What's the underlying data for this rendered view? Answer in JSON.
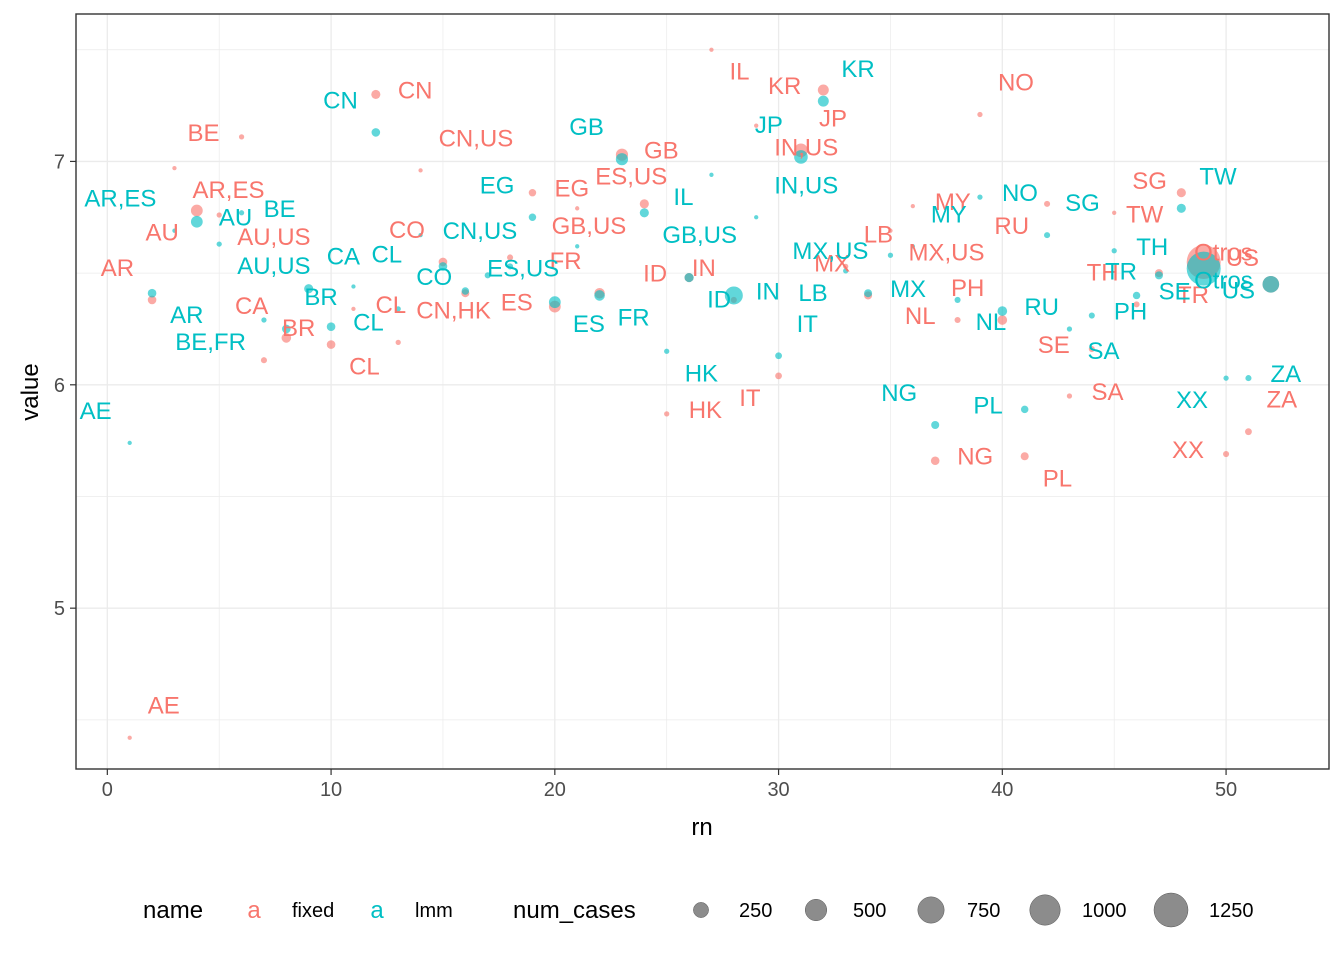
{
  "chart_data": {
    "type": "scatter",
    "xlabel": "rn",
    "ylabel": "value",
    "xlim": [
      -1.4,
      54.6
    ],
    "ylim": [
      4.28,
      7.66
    ],
    "x_ticks": [
      0,
      10,
      20,
      30,
      40,
      50
    ],
    "y_ticks": [
      5,
      6,
      7
    ],
    "grid": true,
    "legend_position": "bottom",
    "colors": {
      "fixed": "#F8766D",
      "lmm": "#00BFC4",
      "size_key": "#7f7f7f"
    },
    "legend": {
      "color_title": "name",
      "color_entries": [
        {
          "key": "a",
          "label": "fixed"
        },
        {
          "key": "a",
          "label": "lmm"
        }
      ],
      "size_title": "num_cases",
      "size_entries": [
        250,
        500,
        750,
        1000,
        1250
      ]
    },
    "series": [
      {
        "name": "fixed",
        "points": [
          {
            "x": 1,
            "y": 4.42,
            "size": 20,
            "label": "AE"
          },
          {
            "x": 2,
            "y": 6.38,
            "size": 80,
            "label": "AR"
          },
          {
            "x": 3,
            "y": 6.97,
            "size": 20,
            "label": "AR,ES"
          },
          {
            "x": 4,
            "y": 6.78,
            "size": 150,
            "label": "AU"
          },
          {
            "x": 5,
            "y": 6.76,
            "size": 30,
            "label": "AU,US"
          },
          {
            "x": 6,
            "y": 7.11,
            "size": 30,
            "label": "BE"
          },
          {
            "x": 7,
            "y": 6.11,
            "size": 40,
            "label": "BR"
          },
          {
            "x": 8,
            "y": 6.21,
            "size": 100,
            "label": "CA"
          },
          {
            "x": 10,
            "y": 6.18,
            "size": 80,
            "label": "CL"
          },
          {
            "x": 11,
            "y": 6.34,
            "size": 20,
            "label": "CL"
          },
          {
            "x": 12,
            "y": 7.3,
            "size": 90,
            "label": "CN"
          },
          {
            "x": 13,
            "y": 6.19,
            "size": 30,
            "label": "CN,HK"
          },
          {
            "x": 14,
            "y": 6.96,
            "size": 20,
            "label": "CN,US"
          },
          {
            "x": 15,
            "y": 6.55,
            "size": 80,
            "label": "CO"
          },
          {
            "x": 16,
            "y": 6.41,
            "size": 70,
            "label": ""
          },
          {
            "x": 18,
            "y": 6.57,
            "size": 40,
            "label": ""
          },
          {
            "x": 19,
            "y": 6.86,
            "size": 60,
            "label": "EG"
          },
          {
            "x": 20,
            "y": 6.35,
            "size": 150,
            "label": "ES"
          },
          {
            "x": 21,
            "y": 6.79,
            "size": 20,
            "label": "ES,US"
          },
          {
            "x": 22,
            "y": 6.41,
            "size": 120,
            "label": "FR"
          },
          {
            "x": 23,
            "y": 7.03,
            "size": 160,
            "label": "GB"
          },
          {
            "x": 24,
            "y": 6.81,
            "size": 90,
            "label": "GB,US"
          },
          {
            "x": 25,
            "y": 5.87,
            "size": 30,
            "label": "HK"
          },
          {
            "x": 26,
            "y": 6.48,
            "size": 90,
            "label": "ID"
          },
          {
            "x": 27,
            "y": 7.5,
            "size": 20,
            "label": "IL"
          },
          {
            "x": 28,
            "y": 6.38,
            "size": 40,
            "label": "IN"
          },
          {
            "x": 29,
            "y": 7.16,
            "size": 20,
            "label": "IN,US"
          },
          {
            "x": 30,
            "y": 6.04,
            "size": 50,
            "label": "IT"
          },
          {
            "x": 31,
            "y": 7.05,
            "size": 200,
            "label": "JP"
          },
          {
            "x": 32,
            "y": 7.32,
            "size": 130,
            "label": "KR"
          },
          {
            "x": 33,
            "y": 6.53,
            "size": 30,
            "label": "LB"
          },
          {
            "x": 34,
            "y": 6.4,
            "size": 70,
            "label": "MX"
          },
          {
            "x": 35,
            "y": 6.69,
            "size": 20,
            "label": "MX,US"
          },
          {
            "x": 36,
            "y": 6.8,
            "size": 20,
            "label": "MY"
          },
          {
            "x": 37,
            "y": 5.66,
            "size": 80,
            "label": "NG"
          },
          {
            "x": 38,
            "y": 6.29,
            "size": 40,
            "label": "NL"
          },
          {
            "x": 39,
            "y": 7.21,
            "size": 30,
            "label": "NO"
          },
          {
            "x": 40,
            "y": 6.29,
            "size": 100,
            "label": "PH"
          },
          {
            "x": 41,
            "y": 5.68,
            "size": 70,
            "label": "PL"
          },
          {
            "x": 42,
            "y": 6.81,
            "size": 40,
            "label": "RU"
          },
          {
            "x": 43,
            "y": 5.95,
            "size": 30,
            "label": "SA"
          },
          {
            "x": 44,
            "y": 6.16,
            "size": 40,
            "label": "SE"
          },
          {
            "x": 45,
            "y": 6.77,
            "size": 20,
            "label": "SG"
          },
          {
            "x": 46,
            "y": 6.36,
            "size": 40,
            "label": "TH"
          },
          {
            "x": 47,
            "y": 6.5,
            "size": 70,
            "label": "TR"
          },
          {
            "x": 48,
            "y": 6.86,
            "size": 90,
            "label": "TW"
          },
          {
            "x": 49,
            "y": 6.55,
            "size": 1250,
            "label": "US"
          },
          {
            "x": 50,
            "y": 5.69,
            "size": 40,
            "label": "XX"
          },
          {
            "x": 51,
            "y": 5.79,
            "size": 50,
            "label": "ZA"
          },
          {
            "x": 52,
            "y": 6.45,
            "size": 300,
            "label": "Otros"
          }
        ]
      },
      {
        "name": "lmm",
        "points": [
          {
            "x": 1,
            "y": 5.74,
            "size": 20,
            "label": "AE"
          },
          {
            "x": 2,
            "y": 6.41,
            "size": 80,
            "label": "AR"
          },
          {
            "x": 3,
            "y": 6.69,
            "size": 20,
            "label": "AR,ES"
          },
          {
            "x": 4,
            "y": 6.73,
            "size": 150,
            "label": "AU"
          },
          {
            "x": 5,
            "y": 6.63,
            "size": 30,
            "label": "AU,US"
          },
          {
            "x": 6,
            "y": 6.77,
            "size": 30,
            "label": "BE"
          },
          {
            "x": 7,
            "y": 6.29,
            "size": 30,
            "label": "BE,FR"
          },
          {
            "x": 8,
            "y": 6.25,
            "size": 80,
            "label": "BR"
          },
          {
            "x": 9,
            "y": 6.43,
            "size": 90,
            "label": "CA"
          },
          {
            "x": 10,
            "y": 6.26,
            "size": 80,
            "label": "CL"
          },
          {
            "x": 11,
            "y": 6.44,
            "size": 20,
            "label": "CL"
          },
          {
            "x": 12,
            "y": 7.13,
            "size": 80,
            "label": "CN"
          },
          {
            "x": 13,
            "y": 6.34,
            "size": 30,
            "label": "CO"
          },
          {
            "x": 14,
            "y": 6.67,
            "size": 20,
            "label": "CN,US"
          },
          {
            "x": 15,
            "y": 6.53,
            "size": 80,
            "label": ""
          },
          {
            "x": 16,
            "y": 6.42,
            "size": 60,
            "label": ""
          },
          {
            "x": 17,
            "y": 6.49,
            "size": 40,
            "label": ""
          },
          {
            "x": 18,
            "y": 6.53,
            "size": 40,
            "label": ""
          },
          {
            "x": 19,
            "y": 6.75,
            "size": 60,
            "label": "EG"
          },
          {
            "x": 20,
            "y": 6.37,
            "size": 150,
            "label": "ES"
          },
          {
            "x": 21,
            "y": 6.62,
            "size": 20,
            "label": "ES,US"
          },
          {
            "x": 22,
            "y": 6.4,
            "size": 120,
            "label": "FR"
          },
          {
            "x": 23,
            "y": 7.01,
            "size": 160,
            "label": "GB"
          },
          {
            "x": 24,
            "y": 6.77,
            "size": 90,
            "label": "GB,US"
          },
          {
            "x": 25,
            "y": 6.15,
            "size": 30,
            "label": "HK"
          },
          {
            "x": 26,
            "y": 6.48,
            "size": 90,
            "label": "ID"
          },
          {
            "x": 27,
            "y": 6.94,
            "size": 20,
            "label": "IL"
          },
          {
            "x": 28,
            "y": 6.4,
            "size": 350,
            "label": "IN"
          },
          {
            "x": 29,
            "y": 6.75,
            "size": 20,
            "label": "IN,US"
          },
          {
            "x": 30,
            "y": 6.13,
            "size": 50,
            "label": "IT"
          },
          {
            "x": 31,
            "y": 7.02,
            "size": 200,
            "label": "JP"
          },
          {
            "x": 32,
            "y": 7.27,
            "size": 130,
            "label": "KR"
          },
          {
            "x": 33,
            "y": 6.51,
            "size": 30,
            "label": "LB"
          },
          {
            "x": 34,
            "y": 6.41,
            "size": 70,
            "label": "MX"
          },
          {
            "x": 35,
            "y": 6.58,
            "size": 30,
            "label": "MX,US"
          },
          {
            "x": 36,
            "y": 6.62,
            "size": 20,
            "label": "MY"
          },
          {
            "x": 37,
            "y": 5.82,
            "size": 70,
            "label": "NG"
          },
          {
            "x": 38,
            "y": 6.38,
            "size": 40,
            "label": "NL"
          },
          {
            "x": 39,
            "y": 6.84,
            "size": 30,
            "label": "NO"
          },
          {
            "x": 40,
            "y": 6.33,
            "size": 100,
            "label": "RU"
          },
          {
            "x": 41,
            "y": 5.89,
            "size": 60,
            "label": "PL"
          },
          {
            "x": 42,
            "y": 6.67,
            "size": 40,
            "label": "SG"
          },
          {
            "x": 43,
            "y": 6.25,
            "size": 30,
            "label": "SA"
          },
          {
            "x": 44,
            "y": 6.31,
            "size": 40,
            "label": "PH"
          },
          {
            "x": 45,
            "y": 6.6,
            "size": 30,
            "label": "TH"
          },
          {
            "x": 46,
            "y": 6.4,
            "size": 60,
            "label": "SE"
          },
          {
            "x": 47,
            "y": 6.49,
            "size": 70,
            "label": "TR"
          },
          {
            "x": 48,
            "y": 6.79,
            "size": 90,
            "label": "TW"
          },
          {
            "x": 49,
            "y": 6.52,
            "size": 1250,
            "label": "US"
          },
          {
            "x": 50,
            "y": 6.03,
            "size": 30,
            "label": "XX"
          },
          {
            "x": 51,
            "y": 6.03,
            "size": 40,
            "label": "ZA"
          },
          {
            "x": 52,
            "y": 6.45,
            "size": 300,
            "label": "Otros"
          }
        ]
      }
    ]
  }
}
